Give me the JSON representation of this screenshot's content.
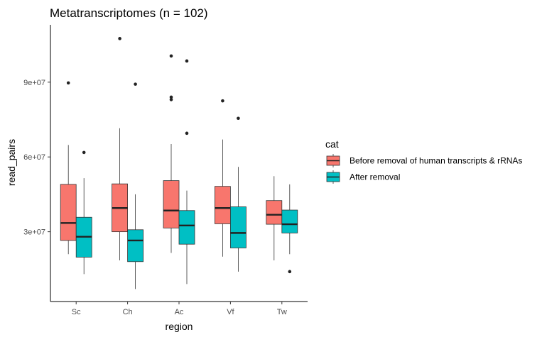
{
  "chart_data": {
    "type": "boxplot",
    "title": "Metatranscriptomes (n = 102)",
    "xlabel": "region",
    "ylabel": "read_pairs",
    "categories": [
      "Sc",
      "Ch",
      "Ac",
      "Vf",
      "Tw"
    ],
    "y_ticks": [
      30000000,
      60000000,
      90000000
    ],
    "y_tick_labels": [
      "3e+07",
      "6e+07",
      "9e+07"
    ],
    "ylim": [
      2000000,
      113000000
    ],
    "grid": false,
    "legend": {
      "title": "cat",
      "position": "right"
    },
    "series": [
      {
        "name": "Before removal of human transcripts & rRNAs",
        "color": "#F8766D",
        "boxes": [
          {
            "min": 21000000,
            "q1": 26500000,
            "median": 33500000,
            "q3": 49000000,
            "max": 64800000,
            "outliers": [
              89700000
            ]
          },
          {
            "min": 18500000,
            "q1": 30000000,
            "median": 39500000,
            "q3": 49200000,
            "max": 71500000,
            "outliers": [
              107500000
            ]
          },
          {
            "min": 21500000,
            "q1": 31500000,
            "median": 38500000,
            "q3": 50500000,
            "max": 65200000,
            "outliers": [
              100500000,
              84000000,
              83000000
            ]
          },
          {
            "min": 20000000,
            "q1": 33200000,
            "median": 39500000,
            "q3": 48200000,
            "max": 67000000,
            "outliers": [
              82500000
            ]
          },
          {
            "min": 18500000,
            "q1": 33000000,
            "median": 36800000,
            "q3": 42500000,
            "max": 52300000,
            "outliers": []
          }
        ]
      },
      {
        "name": "After removal",
        "color": "#00BFC4",
        "boxes": [
          {
            "min": 13000000,
            "q1": 19800000,
            "median": 28000000,
            "q3": 35800000,
            "max": 51500000,
            "outliers": [
              61800000
            ]
          },
          {
            "min": 7000000,
            "q1": 18000000,
            "median": 26500000,
            "q3": 30800000,
            "max": 45000000,
            "outliers": [
              89200000
            ]
          },
          {
            "min": 9000000,
            "q1": 25000000,
            "median": 32500000,
            "q3": 38500000,
            "max": 46500000,
            "outliers": [
              98500000,
              69500000
            ]
          },
          {
            "min": 14000000,
            "q1": 23500000,
            "median": 29500000,
            "q3": 40000000,
            "max": 56000000,
            "outliers": [
              75500000
            ]
          },
          {
            "min": 21000000,
            "q1": 29500000,
            "median": 33000000,
            "q3": 38700000,
            "max": 49000000,
            "outliers": [
              14000000
            ]
          }
        ]
      }
    ]
  }
}
